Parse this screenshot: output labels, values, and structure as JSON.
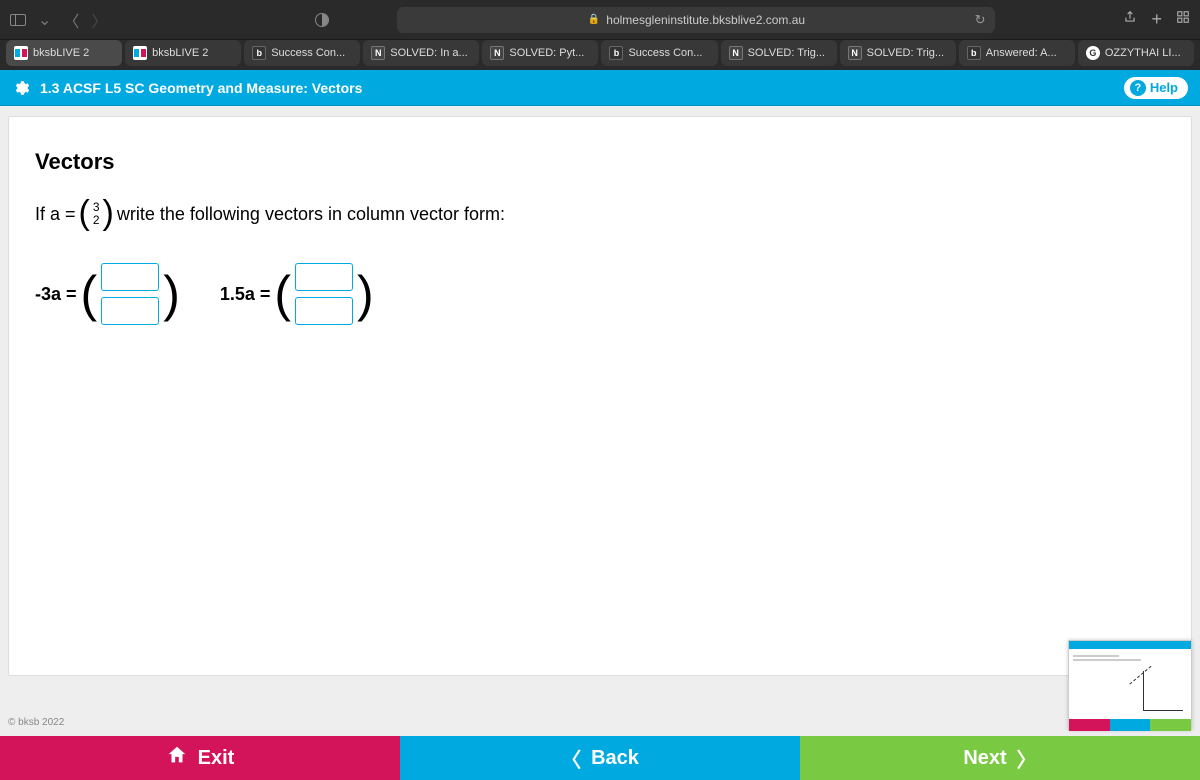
{
  "browser": {
    "url": "holmesgleninstitute.bksblive2.com.au"
  },
  "tabs": [
    {
      "label": "bksbLIVE 2",
      "fav": "bksb",
      "active": true
    },
    {
      "label": "bksbLIVE 2",
      "fav": "bksb"
    },
    {
      "label": "Success Con...",
      "fav": "b"
    },
    {
      "label": "SOLVED: In a...",
      "fav": "n"
    },
    {
      "label": "SOLVED: Pyt...",
      "fav": "n"
    },
    {
      "label": "Success Con...",
      "fav": "b"
    },
    {
      "label": "SOLVED: Trig...",
      "fav": "n"
    },
    {
      "label": "SOLVED: Trig...",
      "fav": "n"
    },
    {
      "label": "Answered: A...",
      "fav": "b"
    },
    {
      "label": "OZZYTHAI LI...",
      "fav": "g"
    }
  ],
  "header": {
    "title": "1.3 ACSF L5 SC Geometry and Measure: Vectors",
    "help_label": "Help"
  },
  "question": {
    "title": "Vectors",
    "prompt_pre": "If  a =",
    "vec_top": "3",
    "vec_bot": "2",
    "prompt_post": " write the following vectors in column vector form:",
    "ans1_label": "-3a  =  ",
    "ans2_label": "1.5a  =  "
  },
  "copyright": "© bksb 2022",
  "footer": {
    "exit": "Exit",
    "back": "Back",
    "next": "Next"
  }
}
